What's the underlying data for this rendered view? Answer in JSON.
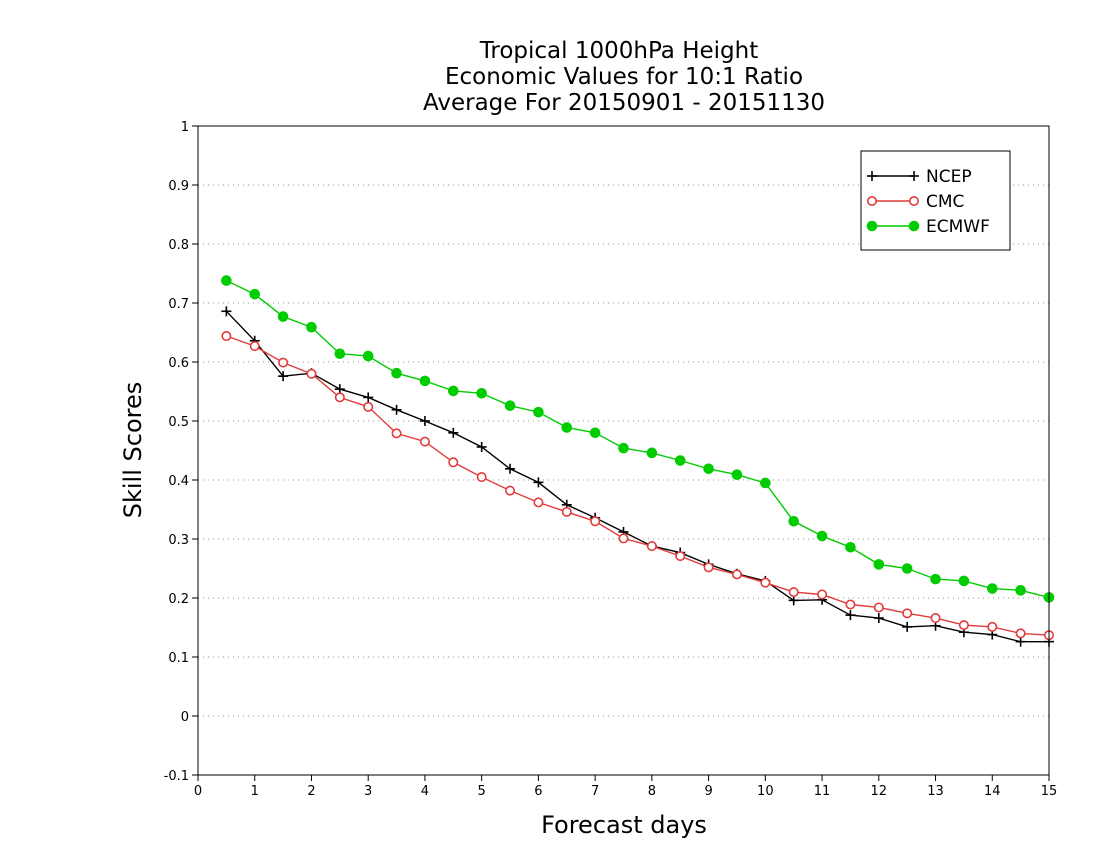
{
  "chart_data": {
    "type": "line",
    "title": [
      "Tropical 1000hPa Height",
      "Economic Values for 10:1 Ratio",
      "Average For 20150901 - 20151130"
    ],
    "xlabel": "Forecast days",
    "ylabel": "Skill Scores",
    "xlim": [
      0,
      15
    ],
    "ylim": [
      -0.1,
      1
    ],
    "xticks": [
      "0",
      "1",
      "2",
      "3",
      "4",
      "5",
      "6",
      "7",
      "8",
      "9",
      "10",
      "11",
      "12",
      "13",
      "14",
      "15"
    ],
    "yticks": [
      "-0.1",
      "0",
      "0.1",
      "0.2",
      "0.3",
      "0.4",
      "0.5",
      "0.6",
      "0.7",
      "0.8",
      "0.9",
      "1"
    ],
    "grid": "horizontal-dotted",
    "legend_position": "top-right",
    "x": [
      0.5,
      1,
      1.5,
      2,
      2.5,
      3,
      3.5,
      4,
      4.5,
      5,
      5.5,
      6,
      6.5,
      7,
      7.5,
      8,
      8.5,
      9,
      9.5,
      10,
      10.5,
      11,
      11.5,
      12,
      12.5,
      13,
      13.5,
      14,
      14.5,
      15
    ],
    "series": [
      {
        "name": "NCEP",
        "color": "#000000",
        "marker": "plus",
        "values": [
          0.686,
          0.636,
          0.576,
          0.581,
          0.554,
          0.54,
          0.519,
          0.5,
          0.48,
          0.456,
          0.419,
          0.396,
          0.358,
          0.336,
          0.312,
          0.288,
          0.277,
          0.257,
          0.241,
          0.229,
          0.196,
          0.197,
          0.171,
          0.166,
          0.151,
          0.153,
          0.142,
          0.138,
          0.126,
          0.126
        ]
      },
      {
        "name": "CMC",
        "color": "#e03c3c",
        "marker": "open-circle",
        "values": [
          0.644,
          0.627,
          0.599,
          0.58,
          0.54,
          0.524,
          0.479,
          0.465,
          0.43,
          0.405,
          0.382,
          0.362,
          0.346,
          0.33,
          0.301,
          0.288,
          0.271,
          0.252,
          0.24,
          0.226,
          0.21,
          0.206,
          0.189,
          0.184,
          0.174,
          0.166,
          0.154,
          0.151,
          0.14,
          0.137
        ]
      },
      {
        "name": "ECMWF",
        "color": "#00cc00",
        "marker": "filled-circle",
        "values": [
          0.738,
          0.715,
          0.677,
          0.659,
          0.614,
          0.61,
          0.581,
          0.568,
          0.551,
          0.547,
          0.526,
          0.515,
          0.489,
          0.48,
          0.454,
          0.446,
          0.433,
          0.419,
          0.409,
          0.395,
          0.33,
          0.305,
          0.286,
          0.257,
          0.25,
          0.232,
          0.229,
          0.216,
          0.213,
          0.201
        ]
      }
    ]
  }
}
